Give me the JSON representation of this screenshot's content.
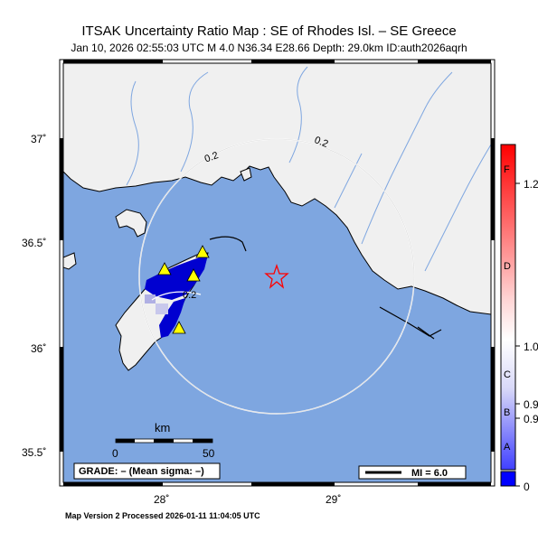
{
  "header": {
    "title": "ITSAK Uncertainty Ratio Map : SE of Rhodes Isl. – SE Greece",
    "event_line": "Jan 10, 2026 02:55:03 UTC   M 4.0   N36.34 E28.66   Depth: 29.0km   ID:auth2026aqrh"
  },
  "map": {
    "lat_ticks": [
      "37˚",
      "36.5˚",
      "36˚",
      "35.5˚"
    ],
    "lon_ticks": [
      "28˚",
      "29˚"
    ],
    "contour_labels": [
      "0.2",
      "0.2",
      "0.2"
    ],
    "epicenter": {
      "lat": 36.34,
      "lon": 28.66
    },
    "colors": {
      "sea": "#7ea6e0",
      "land": "#f0f0f0",
      "uncertainty_high": "#0000d0",
      "epicenter": "#ff0000",
      "station": "#ffff00"
    },
    "scale_bar": {
      "unit": "km",
      "start": "0",
      "end": "50"
    },
    "grade_box": "GRADE: – (Mean sigma: –)",
    "mi_box": "MI = 6.0"
  },
  "colorbar": {
    "letters": [
      "F",
      "D",
      "C",
      "B",
      "A"
    ],
    "values": [
      "1.2",
      "1.0",
      "0.9",
      "0.9",
      "0"
    ],
    "top_color": "#ff0000",
    "mid_color": "#ffffff",
    "bottom_color": "#0000ff"
  },
  "footer": {
    "text": "Map Version 2 Processed 2026-01-11 11:04:05 UTC"
  }
}
